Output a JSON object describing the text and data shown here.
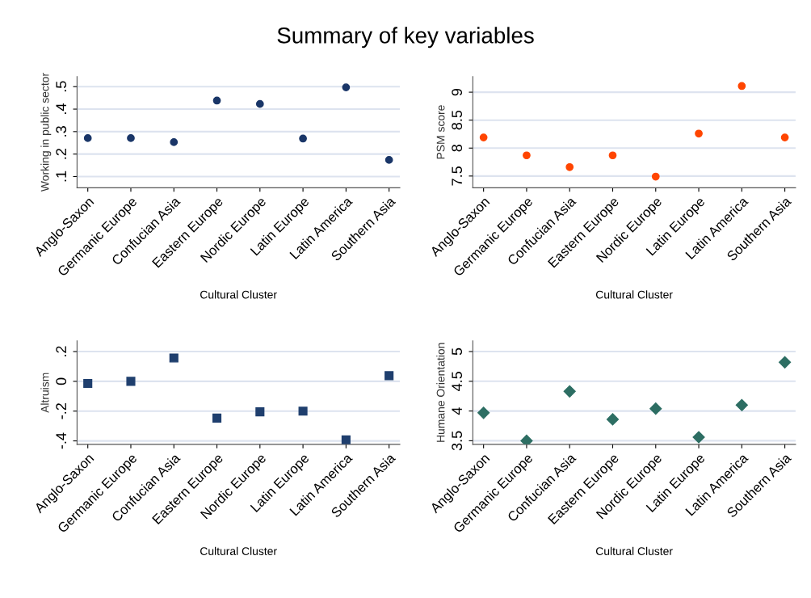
{
  "chart_data": [
    {
      "type": "scatter",
      "title": "Summary of key variables",
      "categories": [
        "Anglo-Saxon",
        "Germanic Europe",
        "Confucian Asia",
        "Eastern Europe",
        "Nordic Europe",
        "Latin Europe",
        "Latin America",
        "Southern Asia"
      ],
      "xlabel": "Cultural Cluster",
      "ylabel": "Working in public sector",
      "values": [
        0.271,
        0.271,
        0.253,
        0.438,
        0.423,
        0.269,
        0.497,
        0.174
      ],
      "color": "#1a3668",
      "marker": "circle",
      "ylim": [
        0.05,
        0.545
      ],
      "yticks": [
        {
          "value": 0.1,
          "label": ".1"
        },
        {
          "value": 0.2,
          "label": ".2"
        },
        {
          "value": 0.3,
          "label": ".3"
        },
        {
          "value": 0.4,
          "label": ".4"
        },
        {
          "value": 0.5,
          "label": ".5"
        }
      ],
      "grid": "y"
    },
    {
      "type": "scatter",
      "categories": [
        "Anglo-Saxon",
        "Germanic Europe",
        "Confucian Asia",
        "Eastern Europe",
        "Nordic Europe",
        "Latin Europe",
        "Latin America",
        "Southern Asia"
      ],
      "xlabel": "Cultural Cluster",
      "ylabel": "PSM score",
      "values": [
        8.19,
        7.87,
        7.66,
        7.87,
        7.49,
        8.26,
        9.11,
        8.19
      ],
      "color": "#ff4500",
      "marker": "circle",
      "ylim": [
        7.29,
        9.28
      ],
      "yticks": [
        7.5,
        8,
        8.5,
        9
      ],
      "grid": "y"
    },
    {
      "type": "scatter",
      "categories": [
        "Anglo-Saxon",
        "Germanic Europe",
        "Confucian Asia",
        "Eastern Europe",
        "Nordic Europe",
        "Latin Europe",
        "Latin America",
        "Southern Asia"
      ],
      "xlabel": "Cultural Cluster",
      "ylabel": "Altruism",
      "values": [
        -0.014,
        0.0,
        0.157,
        -0.247,
        -0.205,
        -0.2,
        -0.393,
        0.038
      ],
      "color": "#1f3f6e",
      "marker": "square",
      "ylim": [
        -0.423,
        0.272
      ],
      "yticks": [
        {
          "value": -0.4,
          "label": "-.4"
        },
        {
          "value": -0.2,
          "label": "-.2"
        },
        {
          "value": 0,
          "label": "0"
        },
        {
          "value": 0.2,
          "label": ".2"
        }
      ],
      "grid": "y"
    },
    {
      "type": "scatter",
      "categories": [
        "Anglo-Saxon",
        "Germanic Europe",
        "Confucian Asia",
        "Eastern Europe",
        "Nordic Europe",
        "Latin Europe",
        "Latin America",
        "Southern Asia"
      ],
      "xlabel": "Cultural Cluster",
      "ylabel": "Humane Orientation",
      "values": [
        3.97,
        3.5,
        4.33,
        3.86,
        4.04,
        3.56,
        4.1,
        4.82
      ],
      "color": "#2d6e63",
      "marker": "diamond",
      "ylim": [
        3.44,
        5.18
      ],
      "yticks": [
        3.5,
        4,
        4.5,
        5
      ],
      "grid": "y"
    }
  ]
}
